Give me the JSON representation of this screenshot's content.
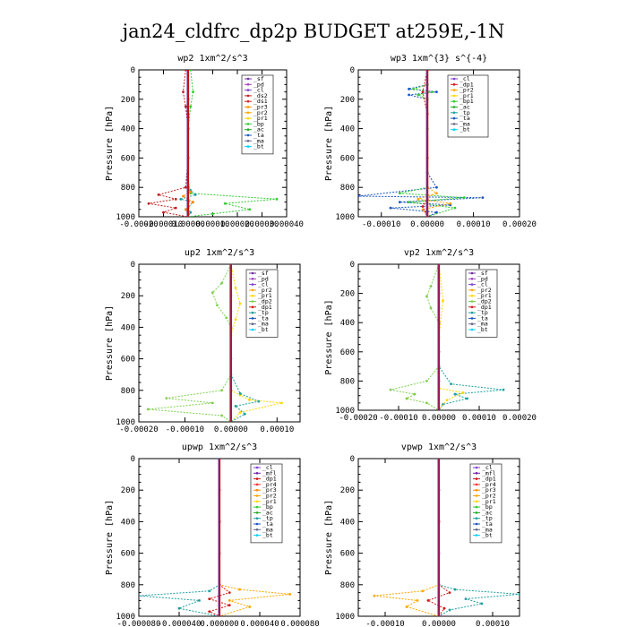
{
  "figure_title": "jan24_cldfrc_dp2p  BUDGET at259E,-1N",
  "colors": {
    "sf": "#7030a0",
    "pd": "#a040c0",
    "cl": "#8040d0",
    "mfl": "#7020b0",
    "ds2": "#c02020",
    "ds1": "#e02020",
    "dp1": "#d01818",
    "dp2": "#7fcf4f",
    "pr4": "#ff3030",
    "pr3": "#ff8c00",
    "pr2": "#ffa500",
    "pr1": "#ffd700",
    "bp": "#33cc33",
    "ac": "#22aa22",
    "tp": "#1f9f9f",
    "ta": "#1a55c0",
    "ma": "#666688",
    "bt": "#00d0ff"
  },
  "chart_data": [
    {
      "type": "line",
      "title": "wp2  1xm^2/s^3",
      "ylabel": "Pressure [hPa]",
      "xlim": [
        -0.0002,
        0.0004
      ],
      "ylim": [
        1000,
        0
      ],
      "x_ticks": [
        "-0.00020",
        "-0.00010",
        "0.00000",
        "0.00010",
        "0.00020",
        "0.00030",
        "0.00040"
      ],
      "y_ticks": [
        "0",
        "200",
        "400",
        "600",
        "800",
        "1000"
      ],
      "legend": [
        "_sf",
        "_pd",
        "_cl",
        "_ds2",
        "_ds1",
        "_pr3",
        "_pr2",
        "_pr1",
        "_bp",
        "_ac",
        "_ta",
        "_ma",
        "_bt"
      ],
      "series": [
        {
          "key": "bp",
          "x": [
            1e-05,
            2e-05,
            1e-05,
            0,
            0,
            0,
            1e-05,
            0.00036,
            0.00015,
            0.00025,
            0.0001,
            0
          ],
          "y": [
            0,
            150,
            250,
            400,
            600,
            800,
            840,
            880,
            910,
            950,
            980,
            1000
          ]
        },
        {
          "key": "ds2",
          "x": [
            -1e-05,
            -2e-05,
            -1e-05,
            0,
            0,
            -1e-05,
            -0.00012,
            -5e-05,
            -0.00016,
            -5e-05,
            -0.0001,
            0
          ],
          "y": [
            0,
            150,
            250,
            400,
            600,
            800,
            850,
            880,
            910,
            940,
            970,
            1000
          ]
        },
        {
          "key": "tp",
          "x": [
            0,
            0,
            0,
            0,
            0,
            1e-05,
            3e-05,
            -3e-05,
            2e-05,
            0,
            1e-05,
            0
          ],
          "y": [
            0,
            200,
            400,
            600,
            780,
            820,
            850,
            880,
            900,
            940,
            970,
            1000
          ]
        },
        {
          "key": "pr3",
          "x": [
            0,
            0,
            0,
            0,
            1e-05,
            -2e-05,
            2e-05,
            -1e-05,
            0
          ],
          "y": [
            0,
            300,
            600,
            800,
            830,
            860,
            900,
            950,
            1000
          ]
        },
        {
          "key": "cl",
          "x": [
            0,
            0,
            0,
            0,
            0,
            0,
            0
          ],
          "y": [
            0,
            200,
            400,
            600,
            800,
            900,
            1000
          ]
        }
      ]
    },
    {
      "type": "line",
      "title": "wp3  1xm^{3} s^{-4}",
      "ylabel": "Pressure [hPa]",
      "xlim": [
        -0.00015,
        0.0002
      ],
      "ylim": [
        1000,
        0
      ],
      "x_ticks": [
        "-0.00010",
        "0.00000",
        "0.00010",
        "0.00020"
      ],
      "y_ticks": [
        "0",
        "200",
        "400",
        "600",
        "800",
        "1000"
      ],
      "legend": [
        "_cl",
        "_dp1",
        "_pr2",
        "_pr1",
        "_bp1",
        "_ac",
        "_tp",
        "_ta",
        "_ma",
        "_bt"
      ],
      "series": [
        {
          "key": "ta",
          "x": [
            0,
            0,
            -4e-05,
            2e-05,
            -4e-05,
            0,
            0,
            0,
            2e-05,
            -0.00015,
            0.00012,
            -6e-05,
            5e-05,
            -8e-05,
            2e-05,
            0
          ],
          "y": [
            0,
            100,
            130,
            150,
            170,
            200,
            400,
            700,
            800,
            860,
            870,
            900,
            920,
            940,
            970,
            1000
          ]
        },
        {
          "key": "bp",
          "x": [
            0,
            0,
            -3e-05,
            1e-05,
            -2e-05,
            0,
            0,
            0,
            -6e-05,
            8e-05,
            -4e-05,
            6e-05,
            0
          ],
          "y": [
            0,
            100,
            130,
            150,
            170,
            200,
            400,
            800,
            840,
            870,
            900,
            940,
            1000
          ]
        },
        {
          "key": "pr2",
          "x": [
            0,
            0,
            0,
            0,
            2e-05,
            -2e-05,
            5e-05,
            -1e-05,
            0
          ],
          "y": [
            0,
            300,
            600,
            800,
            840,
            880,
            910,
            950,
            1000
          ]
        },
        {
          "key": "dp1",
          "x": [
            0,
            -1e-05,
            0,
            0,
            0,
            0,
            -1e-05,
            0
          ],
          "y": [
            0,
            150,
            300,
            600,
            800,
            880,
            930,
            1000
          ]
        }
      ]
    },
    {
      "type": "line",
      "title": "up2  1xm^2/s^3",
      "ylabel": "Pressure [hPa]",
      "xlim": [
        -0.0002,
        0.00015
      ],
      "ylim": [
        1000,
        0
      ],
      "x_ticks": [
        "-0.00020",
        "-0.00010",
        "0.00000",
        "0.00010"
      ],
      "y_ticks": [
        "0",
        "200",
        "400",
        "600",
        "800",
        "1000"
      ],
      "legend": [
        "_sf",
        "_pd",
        "_cl",
        "_pr2",
        "_pr1",
        "_dp2",
        "_dp1",
        "_tp",
        "_ta",
        "_ma",
        "_bt"
      ],
      "series": [
        {
          "key": "dp2",
          "x": [
            0,
            -2e-05,
            -4e-05,
            -3e-05,
            -1e-05,
            0,
            0,
            -2e-05,
            -0.00014,
            -4e-05,
            -0.00018,
            -2e-05,
            0
          ],
          "y": [
            0,
            120,
            180,
            260,
            340,
            400,
            700,
            800,
            850,
            880,
            920,
            960,
            1000
          ]
        },
        {
          "key": "pr1",
          "x": [
            0,
            1e-05,
            2e-05,
            1e-05,
            0,
            0,
            2e-05,
            4e-05,
            0.00011,
            2e-05,
            0
          ],
          "y": [
            0,
            150,
            250,
            350,
            450,
            800,
            830,
            860,
            880,
            940,
            1000
          ]
        },
        {
          "key": "tp",
          "x": [
            0,
            0,
            0,
            2e-05,
            6e-05,
            1e-05,
            3e-05,
            0
          ],
          "y": [
            0,
            300,
            700,
            820,
            870,
            900,
            950,
            1000
          ]
        },
        {
          "key": "sf",
          "x": [
            0,
            0,
            0,
            0,
            0,
            0
          ],
          "y": [
            0,
            200,
            400,
            600,
            800,
            1000
          ]
        }
      ]
    },
    {
      "type": "line",
      "title": "vp2  1xm^2/s^3",
      "ylabel": "Pressure [hPa]",
      "xlim": [
        -0.0002,
        0.0002
      ],
      "ylim": [
        1000,
        0
      ],
      "x_ticks": [
        "-0.00020",
        "-0.00010",
        "0.00000",
        "0.00010",
        "0.00020"
      ],
      "y_ticks": [
        "0",
        "200",
        "400",
        "600",
        "800",
        "1000"
      ],
      "legend": [
        "_sf",
        "_pd",
        "_cl",
        "_pr2",
        "_pr1",
        "_dp2",
        "_dp1",
        "_tp",
        "_ta",
        "_ma",
        "_bt"
      ],
      "series": [
        {
          "key": "dp2",
          "x": [
            0,
            -2e-05,
            -3e-05,
            -2e-05,
            0,
            0,
            -3e-05,
            -0.00012,
            -6e-05,
            -8e-05,
            -3e-05,
            0
          ],
          "y": [
            0,
            150,
            220,
            300,
            400,
            700,
            800,
            860,
            890,
            920,
            950,
            1000
          ]
        },
        {
          "key": "tp",
          "x": [
            0,
            0,
            0,
            3e-05,
            0.00016,
            4e-05,
            7e-05,
            1e-05,
            0
          ],
          "y": [
            0,
            300,
            700,
            820,
            860,
            890,
            920,
            960,
            1000
          ]
        },
        {
          "key": "pr1",
          "x": [
            0,
            1e-05,
            0,
            0,
            6e-05,
            2e-05,
            0
          ],
          "y": [
            0,
            250,
            500,
            850,
            880,
            930,
            1000
          ]
        },
        {
          "key": "sf",
          "x": [
            0,
            0,
            0,
            0,
            0,
            0
          ],
          "y": [
            0,
            200,
            400,
            600,
            800,
            1000
          ]
        }
      ]
    },
    {
      "type": "line",
      "title": "upwp  1xm^2/s^3",
      "ylabel": "Pressure [hPa]",
      "xlim": [
        -8e-05,
        8e-05
      ],
      "ylim": [
        1000,
        0
      ],
      "x_ticks": [
        "-0.000080",
        "-0.000040",
        "0.000000",
        "0.000040",
        "0.000080"
      ],
      "y_ticks": [
        "0",
        "200",
        "400",
        "600",
        "800",
        "1000"
      ],
      "legend": [
        "_cl",
        "_mfl",
        "_dp1",
        "_pr4",
        "_pr3",
        "_pr2",
        "_pr1",
        "_bp",
        "_ac",
        "_tp",
        "_ta",
        "_ma",
        "_bt"
      ],
      "series": [
        {
          "key": "tp",
          "x": [
            0,
            0,
            0,
            -1e-05,
            -8e-05,
            -2e-05,
            -4e-05,
            0
          ],
          "y": [
            0,
            400,
            800,
            840,
            870,
            900,
            950,
            1000
          ]
        },
        {
          "key": "pr2",
          "x": [
            0,
            0,
            0,
            2e-05,
            7e-05,
            1e-05,
            3e-05,
            0
          ],
          "y": [
            0,
            400,
            800,
            830,
            860,
            900,
            940,
            1000
          ]
        },
        {
          "key": "dp1",
          "x": [
            0,
            0,
            0,
            1e-05,
            -1e-05,
            1e-05,
            -1e-05,
            0
          ],
          "y": [
            0,
            400,
            800,
            850,
            890,
            930,
            970,
            1000
          ]
        },
        {
          "key": "cl",
          "x": [
            0,
            0,
            0,
            0,
            0,
            0
          ],
          "y": [
            0,
            200,
            400,
            600,
            800,
            1000
          ]
        }
      ]
    },
    {
      "type": "line",
      "title": "vpwp  1xm^2/s^3",
      "ylabel": "Pressure [hPa]",
      "xlim": [
        -0.00015,
        0.00015
      ],
      "ylim": [
        1000,
        0
      ],
      "x_ticks": [
        "-0.00010",
        "0.00000",
        "0.00010"
      ],
      "y_ticks": [
        "0",
        "200",
        "400",
        "600",
        "800",
        "1000"
      ],
      "legend": [
        "_cl",
        "_mfl",
        "_dp1",
        "_pr4",
        "_pr3",
        "_pr2",
        "_pr1",
        "_bp",
        "_ac",
        "_tp",
        "_ta",
        "_ma",
        "_bt"
      ],
      "series": [
        {
          "key": "tp",
          "x": [
            0,
            0,
            0,
            3e-05,
            0.00015,
            5e-05,
            8e-05,
            2e-05,
            0
          ],
          "y": [
            0,
            400,
            800,
            830,
            860,
            890,
            920,
            960,
            1000
          ]
        },
        {
          "key": "pr2",
          "x": [
            0,
            0,
            0,
            -3e-05,
            -0.00012,
            -4e-05,
            -6e-05,
            0
          ],
          "y": [
            0,
            400,
            800,
            840,
            870,
            900,
            940,
            1000
          ]
        },
        {
          "key": "dp1",
          "x": [
            0,
            0,
            0,
            2e-05,
            -2e-05,
            1e-05,
            0
          ],
          "y": [
            0,
            400,
            800,
            850,
            900,
            950,
            1000
          ]
        },
        {
          "key": "cl",
          "x": [
            0,
            0,
            0,
            0,
            0,
            0
          ],
          "y": [
            0,
            200,
            400,
            600,
            800,
            1000
          ]
        }
      ]
    }
  ]
}
